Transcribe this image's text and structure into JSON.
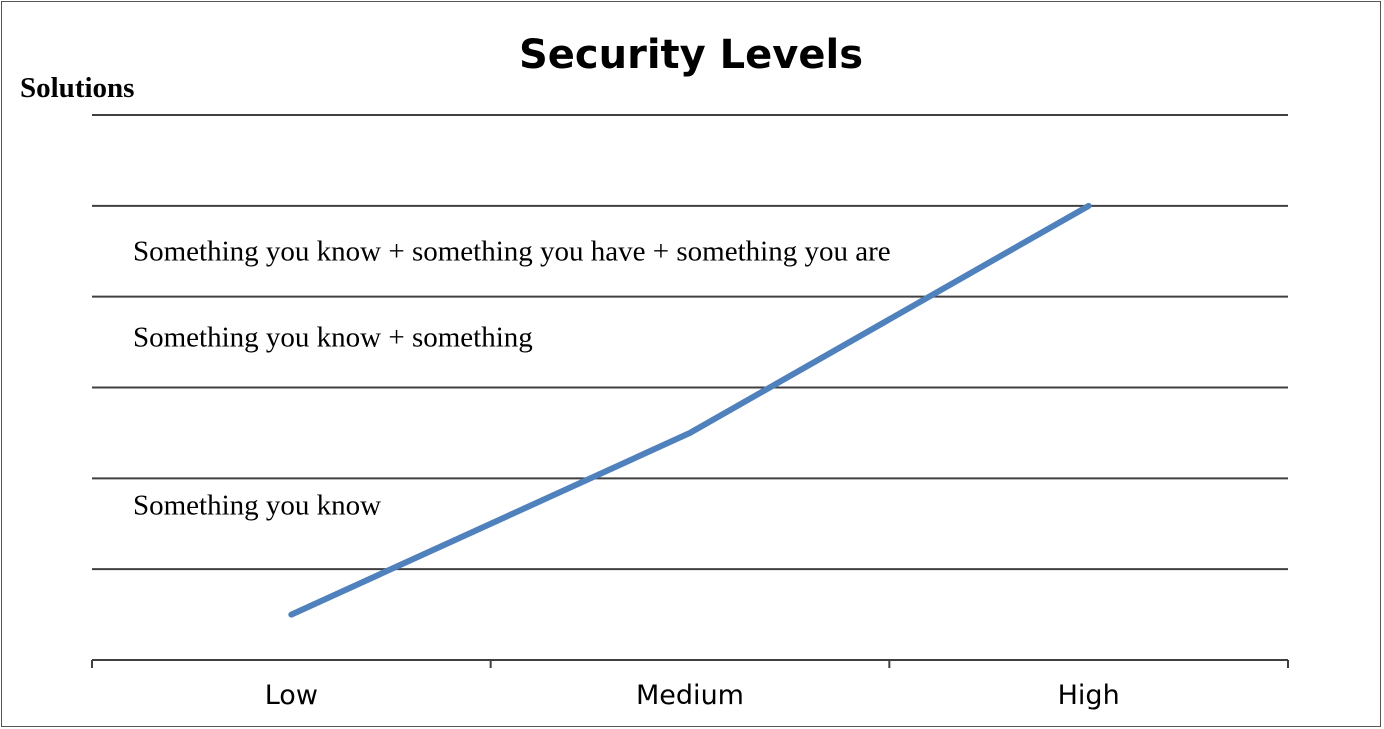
{
  "chart_data": {
    "type": "line",
    "title": "Security Levels",
    "ylabel": "Solutions",
    "xlabel": "",
    "categories": [
      "Low",
      "Medium",
      "High"
    ],
    "series": [
      {
        "values": [
          0.5,
          2.5,
          5.0
        ],
        "color": "#4F81BD"
      }
    ],
    "ylim": [
      0,
      6
    ],
    "grid": true,
    "legend": "none",
    "annotations": [
      {
        "text": "Something you know + something you have + something you are",
        "y": 4.5
      },
      {
        "text": "Something you know + something",
        "y": 3.55
      },
      {
        "text": "Something you know",
        "y": 1.7
      }
    ]
  }
}
